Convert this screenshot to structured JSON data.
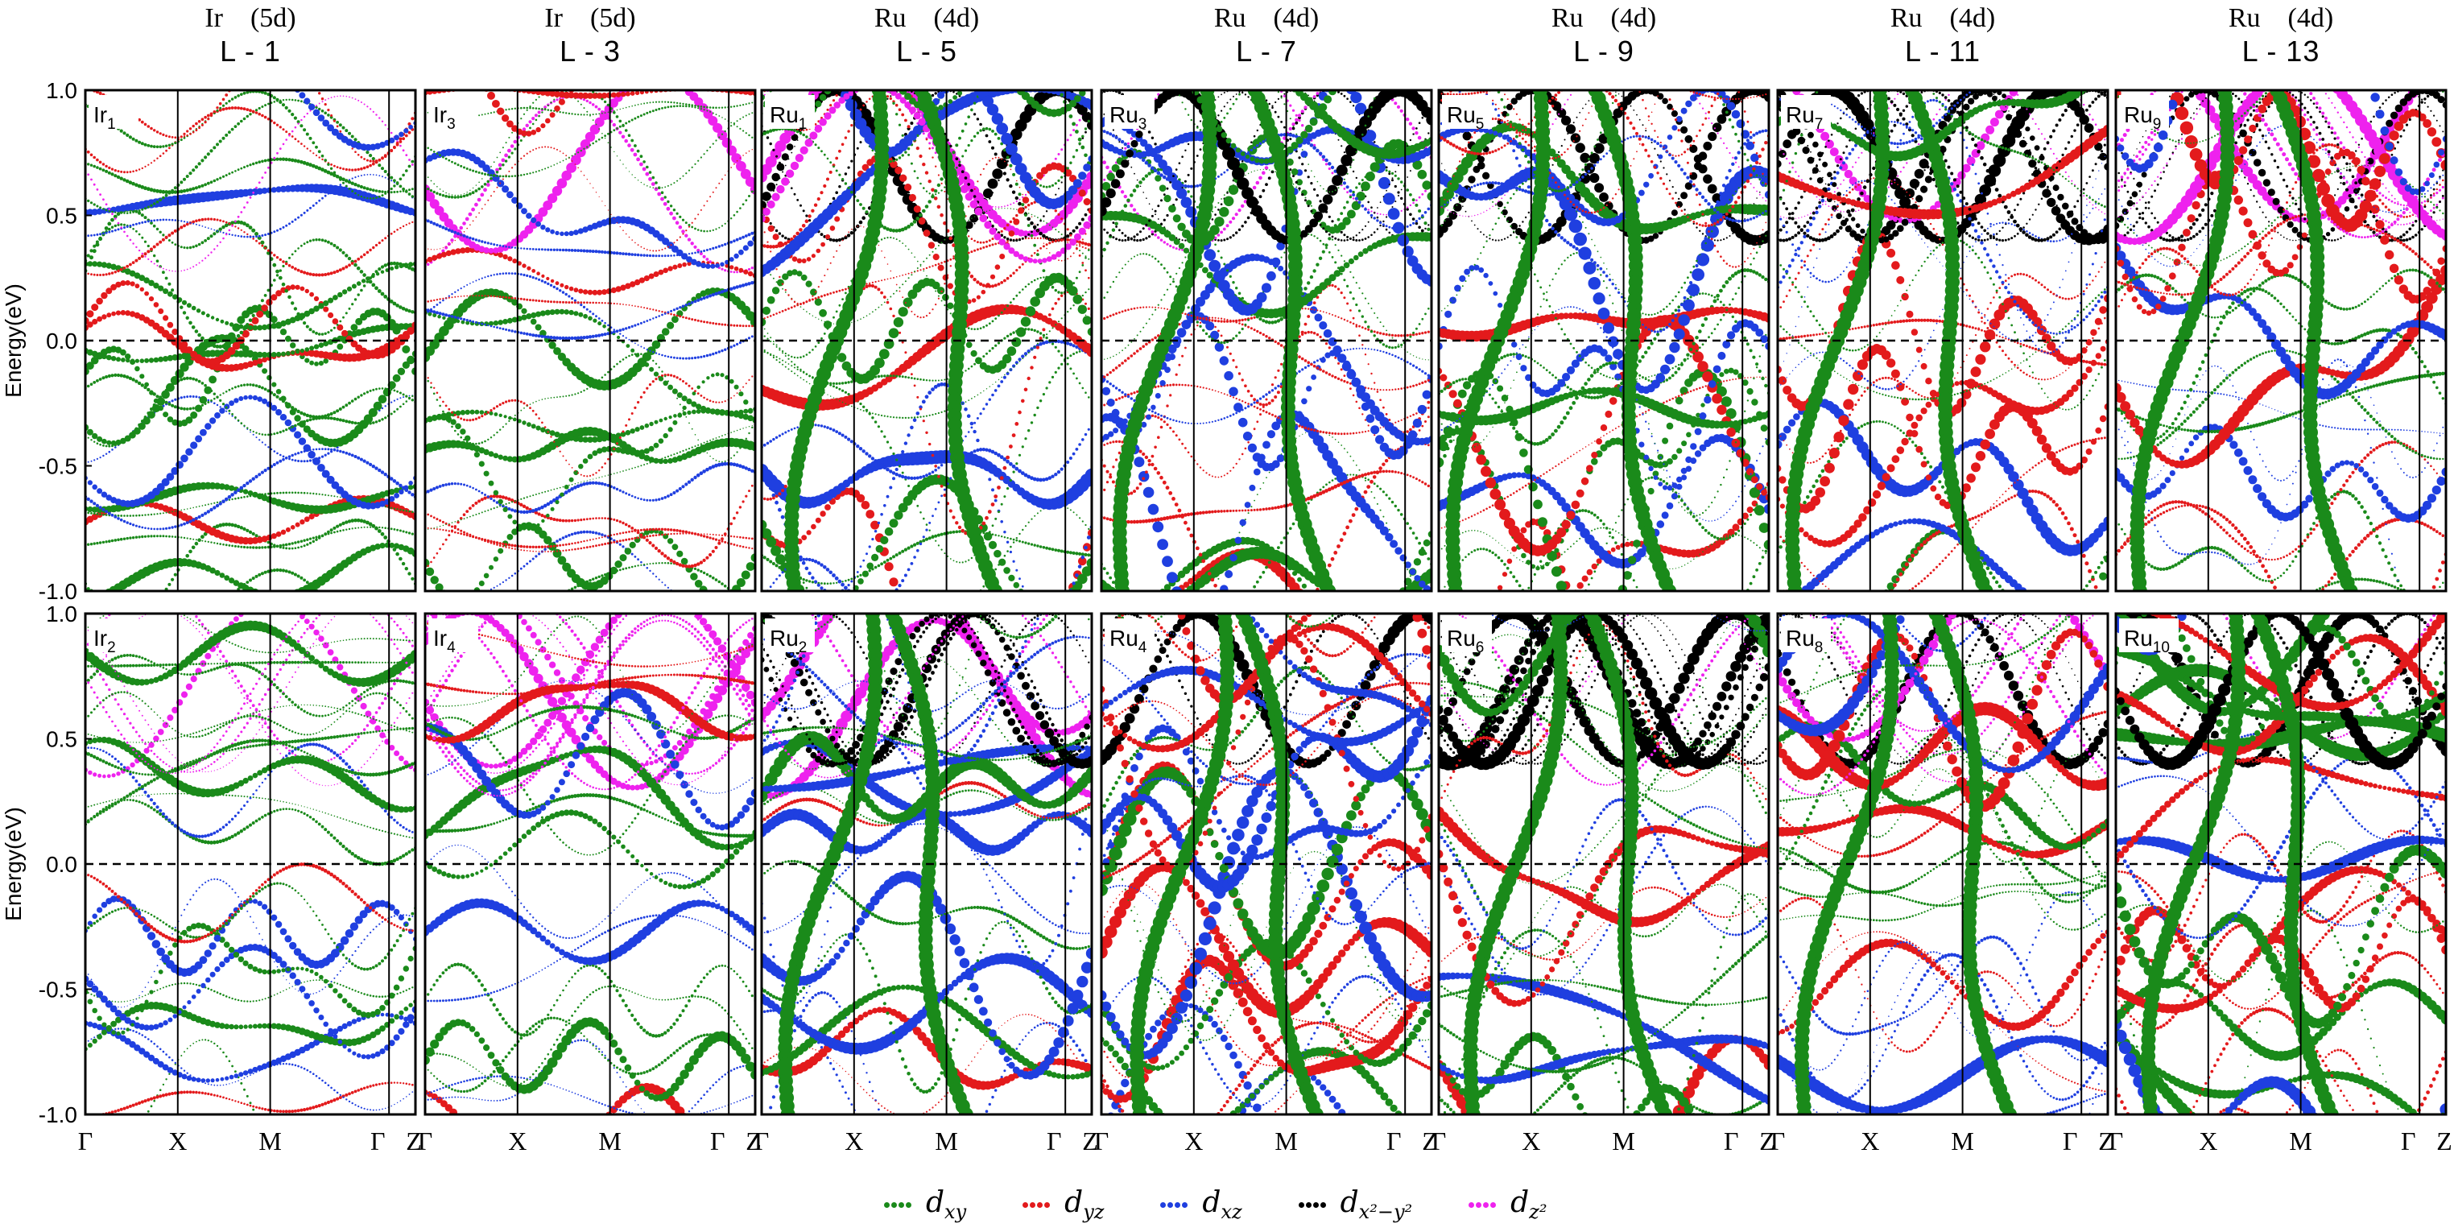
{
  "columns": [
    {
      "element": "Ir",
      "shell": "(5d)",
      "layer": "L - 1",
      "top_atom": "Ir",
      "top_sub": "1",
      "bottom_atom": "Ir",
      "bottom_sub": "2"
    },
    {
      "element": "Ir",
      "shell": "(5d)",
      "layer": "L - 3",
      "top_atom": "Ir",
      "top_sub": "3",
      "bottom_atom": "Ir",
      "bottom_sub": "4"
    },
    {
      "element": "Ru",
      "shell": "(4d)",
      "layer": "L - 5",
      "top_atom": "Ru",
      "top_sub": "1",
      "bottom_atom": "Ru",
      "bottom_sub": "2"
    },
    {
      "element": "Ru",
      "shell": "(4d)",
      "layer": "L - 7",
      "top_atom": "Ru",
      "top_sub": "3",
      "bottom_atom": "Ru",
      "bottom_sub": "4"
    },
    {
      "element": "Ru",
      "shell": "(4d)",
      "layer": "L - 9",
      "top_atom": "Ru",
      "top_sub": "5",
      "bottom_atom": "Ru",
      "bottom_sub": "6"
    },
    {
      "element": "Ru",
      "shell": "(4d)",
      "layer": "L - 11",
      "top_atom": "Ru",
      "top_sub": "7",
      "bottom_atom": "Ru",
      "bottom_sub": "8"
    },
    {
      "element": "Ru",
      "shell": "(4d)",
      "layer": "L - 13",
      "top_atom": "Ru",
      "top_sub": "9",
      "bottom_atom": "Ru",
      "bottom_sub": "10"
    }
  ],
  "legend": [
    {
      "label": "d",
      "sub": "xy",
      "color": "#1a8a1a"
    },
    {
      "label": "d",
      "sub": "yz",
      "color": "#e31a1c"
    },
    {
      "label": "d",
      "sub": "xz",
      "color": "#1f3fe0"
    },
    {
      "label": "d",
      "sub": "x²−y²",
      "color": "#000000"
    },
    {
      "label": "d",
      "sub": "z²",
      "color": "#ee22ee"
    }
  ],
  "chart_data": {
    "type": "scatter",
    "description_kind": "fat-band structure, 14 panels (2 rows x 7 columns)",
    "ylabel": "Energy(eV)",
    "ylim": [
      -1.0,
      1.0
    ],
    "yticks": [
      "1.0",
      "0.5",
      "0.0",
      "-0.5",
      "-1.0"
    ],
    "ytick_values": [
      1.0,
      0.5,
      0.0,
      -0.5,
      -1.0
    ],
    "fermi_level": 0.0,
    "kpath": [
      "Γ",
      "X",
      "M",
      "Γ",
      "Z"
    ],
    "kpath_positions": [
      0.0,
      0.28,
      0.56,
      0.92,
      1.0
    ],
    "grid": false,
    "legend_position": "bottom-center",
    "series_colors": {
      "dxy": "#1a8a1a",
      "dyz": "#e31a1c",
      "dxz": "#1f3fe0",
      "dx2y2": "#000000",
      "dz2": "#ee22ee"
    }
  }
}
